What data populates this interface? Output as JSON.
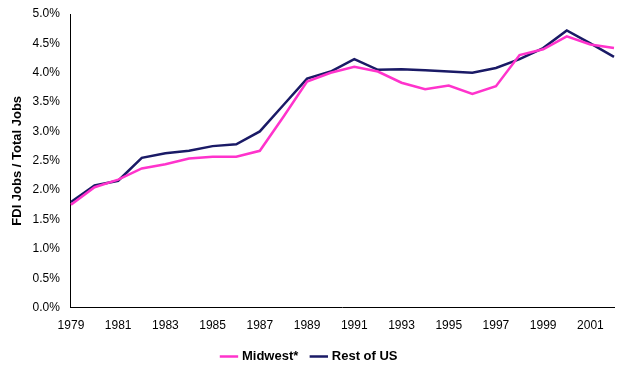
{
  "chart_data": {
    "type": "line",
    "y_label": "FDI Jobs / Total Jobs",
    "categories": [
      "1979",
      null,
      "1981",
      null,
      "1983",
      null,
      "1985",
      null,
      "1987",
      null,
      "1989",
      null,
      "1991",
      null,
      "1993",
      null,
      "1995",
      null,
      "1997",
      null,
      "1999",
      null,
      "2001",
      null
    ],
    "series": [
      {
        "name": "Midwest*",
        "color": "#ff33cc",
        "values": [
          1.75,
          2.05,
          2.18,
          2.37,
          2.44,
          2.54,
          2.57,
          2.57,
          2.67,
          3.25,
          3.85,
          4.0,
          4.1,
          4.02,
          3.83,
          3.72,
          3.78,
          3.64,
          3.77,
          4.3,
          4.4,
          4.62,
          4.48,
          4.42
        ]
      },
      {
        "name": "Rest of US",
        "color": "#1a1a66",
        "values": [
          1.8,
          2.08,
          2.16,
          2.55,
          2.63,
          2.67,
          2.75,
          2.78,
          3.0,
          3.45,
          3.9,
          4.02,
          4.23,
          4.05,
          4.06,
          4.04,
          4.02,
          4.0,
          4.08,
          4.23,
          4.42,
          4.72,
          4.5,
          4.27
        ]
      }
    ],
    "ylim": [
      0,
      5
    ],
    "yticks": [
      {
        "value": 0,
        "label": "0.0%"
      },
      {
        "value": 0.5,
        "label": "0.5%"
      },
      {
        "value": 1,
        "label": "1.0%"
      },
      {
        "value": 1.5,
        "label": "1.5%"
      },
      {
        "value": 2,
        "label": "2.0%"
      },
      {
        "value": 2.5,
        "label": "2.5%"
      },
      {
        "value": 3,
        "label": "3.0%"
      },
      {
        "value": 3.5,
        "label": "3.5%"
      },
      {
        "value": 4,
        "label": "4.0%"
      },
      {
        "value": 4.5,
        "label": "4.5%"
      },
      {
        "value": 5,
        "label": "5.0%"
      }
    ],
    "grid": false,
    "legend": "bottom"
  }
}
